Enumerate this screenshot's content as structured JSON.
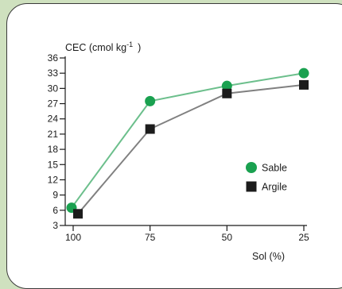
{
  "chart_data": {
    "type": "line",
    "ylabel_main": "CEC (cmol kg",
    "ylabel_sup": "-1",
    "ylabel_close": ")",
    "xlabel": "Sol (%)",
    "categories": [
      "100",
      "75",
      "50",
      "25"
    ],
    "x": [
      100,
      75,
      50,
      25
    ],
    "y_ticks": [
      "3",
      "6",
      "9",
      "12",
      "15",
      "18",
      "21",
      "24",
      "27",
      "30",
      "33",
      "36"
    ],
    "ylim": [
      3,
      36
    ],
    "xlim": [
      100,
      25
    ],
    "series": [
      {
        "name": "Sable",
        "marker": "circle",
        "color": "#6cbf8c",
        "marker_color": "#1aa150",
        "values": [
          6.5,
          27.5,
          30.5,
          33
        ]
      },
      {
        "name": "Argile",
        "marker": "square",
        "color": "#808080",
        "marker_color": "#1c1c1c",
        "values": [
          5.3,
          22,
          29,
          30.7
        ]
      }
    ],
    "legend_position": "right",
    "grid": false
  }
}
